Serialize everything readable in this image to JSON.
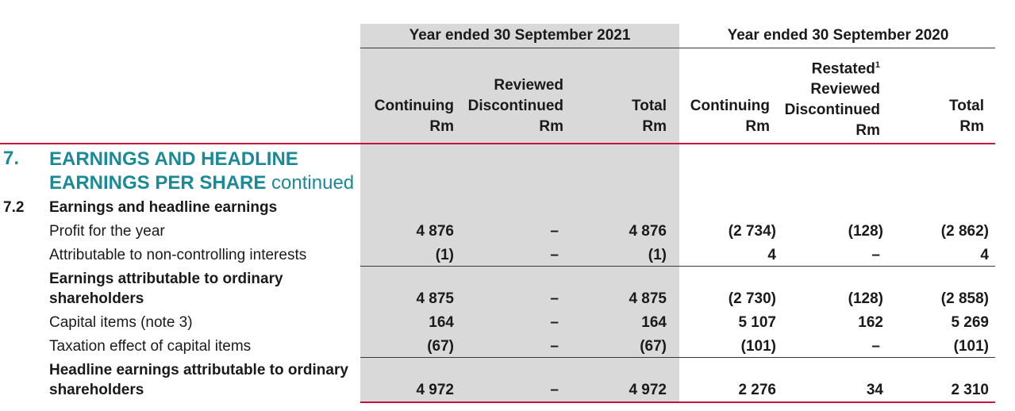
{
  "header": {
    "year_2021": "Year ended 30 September 2021",
    "year_2020": "Year ended 30 September 2020",
    "y2021_cols": {
      "continuing": [
        "Continuing",
        "Rm"
      ],
      "discontinued": [
        "Reviewed",
        "Discontinued",
        "Rm"
      ],
      "total": [
        "Total",
        "Rm"
      ]
    },
    "y2020_cols": {
      "continuing": [
        "Continuing",
        "Rm"
      ],
      "discontinued_restated": "Restated",
      "restated_note": "1",
      "discontinued": [
        "Reviewed",
        "Discontinued",
        "Rm"
      ],
      "total": [
        "Total",
        "Rm"
      ]
    }
  },
  "section": {
    "number": "7.",
    "title_bold_line1": "EARNINGS AND HEADLINE",
    "title_bold_line2": "EARNINGS PER SHARE",
    "title_suffix": "continued"
  },
  "subsection": {
    "number": "7.2",
    "title": "Earnings and headline earnings"
  },
  "rows": [
    {
      "label": [
        "Profit for the year"
      ],
      "bold": false,
      "values": [
        "4 876",
        "–",
        "4 876",
        "(2 734)",
        "(128)",
        "(2 862)"
      ]
    },
    {
      "label": [
        "Attributable to non-controlling interests"
      ],
      "bold": false,
      "values": [
        "(1)",
        "–",
        "(1)",
        "4",
        "–",
        "4"
      ]
    },
    {
      "label": [
        "Earnings attributable to ordinary",
        "shareholders"
      ],
      "bold": true,
      "values": [
        "4 875",
        "–",
        "4 875",
        "(2 730)",
        "(128)",
        "(2 858)"
      ]
    },
    {
      "label": [
        "Capital items (note 3)"
      ],
      "bold": false,
      "values": [
        "164",
        "–",
        "164",
        "5 107",
        "162",
        "5 269"
      ]
    },
    {
      "label": [
        "Taxation effect of capital items"
      ],
      "bold": false,
      "values": [
        "(67)",
        "–",
        "(67)",
        "(101)",
        "–",
        "(101)"
      ]
    },
    {
      "label": [
        "Headline earnings attributable to ordinary",
        "shareholders"
      ],
      "bold": true,
      "values": [
        "4 972",
        "–",
        "4 972",
        "2 276",
        "34",
        "2 310"
      ]
    }
  ],
  "colors": {
    "teal": "#1a8a98",
    "red_rule": "#c8143c",
    "shade": "#d9d9d9"
  }
}
